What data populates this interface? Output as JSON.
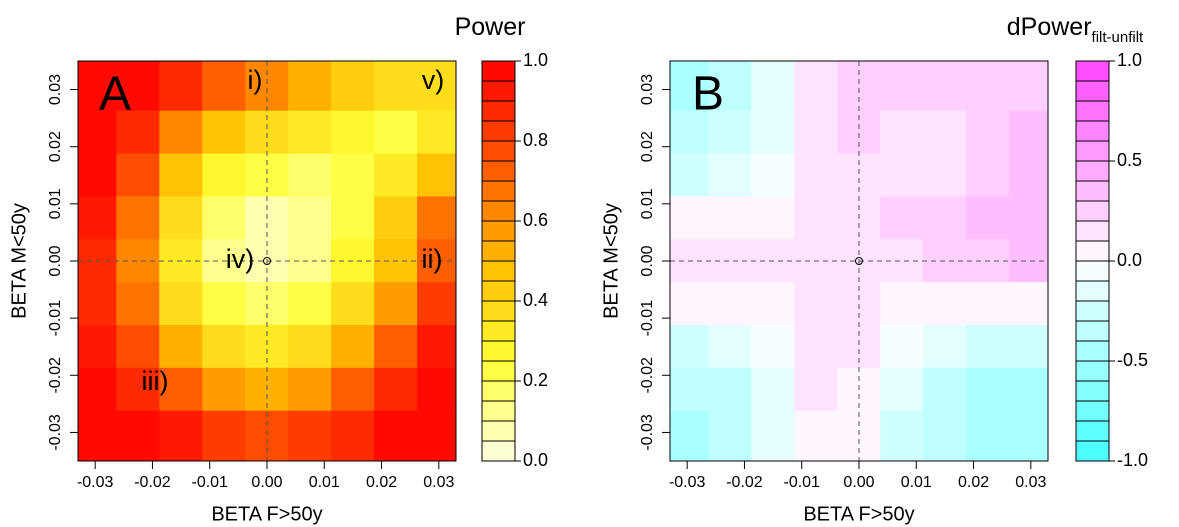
{
  "chart_data": [
    {
      "type": "contour",
      "title": "Power",
      "xlabel": "BETA F>50y",
      "ylabel": "BETA M<50y",
      "panel_label": "A",
      "annotations": [
        "i)",
        "v)",
        "iv)",
        "ii)",
        "iii)"
      ],
      "xlim": [
        -0.033,
        0.033
      ],
      "ylim": [
        -0.035,
        0.035
      ],
      "xticks": [
        -0.03,
        -0.02,
        -0.01,
        {
          "value": 0,
          "label": "0.00"
        },
        0.01,
        0.02,
        0.03
      ],
      "yticks": [
        -0.03,
        -0.02,
        -0.01,
        {
          "value": 0,
          "label": "0.00"
        },
        0.01,
        0.02,
        0.03
      ],
      "crosshair": [
        0,
        0
      ],
      "x": [
        -0.03,
        -0.0225,
        -0.015,
        -0.0075,
        0,
        0.0075,
        0.015,
        0.0225,
        0.03
      ],
      "y": [
        0.03,
        0.0225,
        0.015,
        0.0075,
        0,
        -0.0075,
        -0.015,
        -0.0225,
        -0.03
      ],
      "z": [
        [
          1.0,
          0.95,
          0.85,
          0.7,
          0.6,
          0.5,
          0.4,
          0.35,
          0.35
        ],
        [
          0.98,
          0.85,
          0.6,
          0.45,
          0.35,
          0.3,
          0.25,
          0.2,
          0.3
        ],
        [
          0.95,
          0.75,
          0.45,
          0.25,
          0.2,
          0.15,
          0.2,
          0.3,
          0.45
        ],
        [
          0.9,
          0.65,
          0.35,
          0.15,
          0.08,
          0.1,
          0.2,
          0.4,
          0.65
        ],
        [
          0.85,
          0.6,
          0.3,
          0.1,
          0.05,
          0.1,
          0.25,
          0.45,
          0.7
        ],
        [
          0.88,
          0.65,
          0.35,
          0.2,
          0.15,
          0.2,
          0.35,
          0.55,
          0.8
        ],
        [
          0.92,
          0.75,
          0.5,
          0.35,
          0.3,
          0.35,
          0.5,
          0.7,
          0.9
        ],
        [
          0.97,
          0.88,
          0.7,
          0.55,
          0.5,
          0.55,
          0.7,
          0.85,
          0.95
        ],
        [
          1.0,
          0.97,
          0.9,
          0.8,
          0.75,
          0.8,
          0.88,
          0.95,
          1.0
        ]
      ],
      "colorbar": {
        "lim": [
          0,
          1
        ],
        "ticks": [
          {
            "value": 0,
            "label": "0.0"
          },
          0.2,
          0.4,
          0.6,
          0.8,
          {
            "value": 1,
            "label": "1.0"
          }
        ],
        "levels": [
          0,
          0.05,
          0.1,
          0.15,
          0.2,
          0.25,
          0.3,
          0.35,
          0.4,
          0.45,
          0.5,
          0.55,
          0.6,
          0.65,
          0.7,
          0.75,
          0.8,
          0.85,
          0.9,
          0.95,
          1
        ],
        "colorscale": [
          "#ffffe6",
          "#ffff33",
          "#ffbb00",
          "#ff5500",
          "#ff0000"
        ]
      }
    },
    {
      "type": "contour",
      "title": "dPower",
      "title_subscript": "filt-unfilt",
      "xlabel": "BETA F>50y",
      "ylabel": "BETA M<50y",
      "panel_label": "B",
      "annotations": [],
      "xlim": [
        -0.033,
        0.033
      ],
      "ylim": [
        -0.035,
        0.035
      ],
      "xticks": [
        -0.03,
        -0.02,
        -0.01,
        {
          "value": 0,
          "label": "0.00"
        },
        0.01,
        0.02,
        0.03
      ],
      "yticks": [
        -0.03,
        -0.02,
        -0.01,
        {
          "value": 0,
          "label": "0.00"
        },
        0.01,
        0.02,
        0.03
      ],
      "crosshair": [
        0,
        0
      ],
      "x": [
        -0.03,
        -0.0225,
        -0.015,
        -0.0075,
        0,
        0.0075,
        0.015,
        0.0225,
        0.03
      ],
      "y": [
        0.03,
        0.0225,
        0.015,
        0.0075,
        0,
        -0.0075,
        -0.015,
        -0.0225,
        -0.03
      ],
      "z": [
        [
          -0.5,
          -0.4,
          -0.2,
          0.15,
          0.25,
          0.2,
          0.2,
          0.25,
          0.25
        ],
        [
          -0.4,
          -0.3,
          -0.15,
          0.15,
          0.2,
          0.15,
          0.1,
          0.2,
          0.3
        ],
        [
          -0.25,
          -0.2,
          -0.1,
          0.1,
          0.15,
          0.1,
          0.15,
          0.25,
          0.35
        ],
        [
          0.05,
          0.05,
          0.05,
          0.1,
          0.15,
          0.2,
          0.25,
          0.3,
          0.35
        ],
        [
          0.15,
          0.12,
          0.1,
          0.12,
          0.1,
          0.15,
          0.2,
          0.25,
          0.3
        ],
        [
          0.05,
          0.05,
          0.05,
          0.1,
          0.1,
          0.05,
          0.02,
          0.02,
          0.05
        ],
        [
          -0.25,
          -0.2,
          -0.1,
          0.1,
          0.1,
          -0.1,
          -0.2,
          -0.25,
          -0.25
        ],
        [
          -0.4,
          -0.35,
          -0.2,
          0.1,
          0.05,
          -0.2,
          -0.35,
          -0.45,
          -0.5
        ],
        [
          -0.45,
          -0.4,
          -0.2,
          0.05,
          0.02,
          -0.25,
          -0.4,
          -0.5,
          -0.5
        ]
      ],
      "colorbar": {
        "lim": [
          -1,
          1
        ],
        "ticks": [
          {
            "value": -1,
            "label": "-1.0"
          },
          -0.5,
          {
            "value": 0,
            "label": "0.0"
          },
          0.5,
          {
            "value": 1,
            "label": "1.0"
          }
        ],
        "levels": [
          -1,
          -0.9,
          -0.8,
          -0.7,
          -0.6,
          -0.5,
          -0.4,
          -0.3,
          -0.2,
          -0.1,
          0,
          0.1,
          0.2,
          0.3,
          0.4,
          0.5,
          0.6,
          0.7,
          0.8,
          0.9,
          1
        ],
        "colorscale": [
          "#44ffff",
          "#ffffff",
          "#ff44ff"
        ]
      }
    }
  ]
}
